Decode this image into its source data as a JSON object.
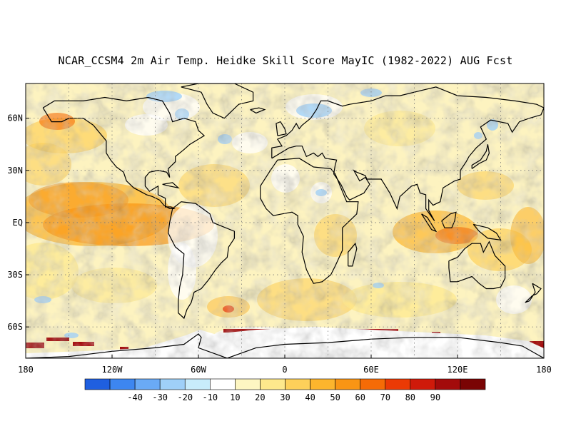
{
  "title": "NCAR_CCSM4 2m Air Temp. Heidke Skill Score MayIC (1982-2022) AUG Fcst",
  "map": {
    "lat_labels": [
      "60N",
      "30N",
      "EQ",
      "30S",
      "60S"
    ],
    "lat_values": [
      60,
      30,
      0,
      -30,
      -60
    ],
    "lon_labels": [
      "180",
      "120W",
      "60W",
      "0",
      "60E",
      "120E",
      "180"
    ],
    "lon_values": [
      -180,
      -120,
      -60,
      0,
      60,
      120,
      180
    ],
    "lat_range": [
      -78,
      80
    ],
    "lon_range": [
      -180,
      180
    ]
  },
  "colorbar": {
    "labels": [
      "-40",
      "-30",
      "-20",
      "-10",
      "10",
      "20",
      "30",
      "40",
      "50",
      "60",
      "70",
      "80",
      "90"
    ],
    "colors": [
      "#1f5fe0",
      "#3d86f0",
      "#6aaaf5",
      "#9fd0f8",
      "#c8ecfb",
      "#ffffff",
      "#fdf6c2",
      "#fde88c",
      "#fdd05a",
      "#fcb52d",
      "#f99514",
      "#f56b06",
      "#eb3a05",
      "#cf1a0a",
      "#a30b0b",
      "#7a0404"
    ]
  }
}
